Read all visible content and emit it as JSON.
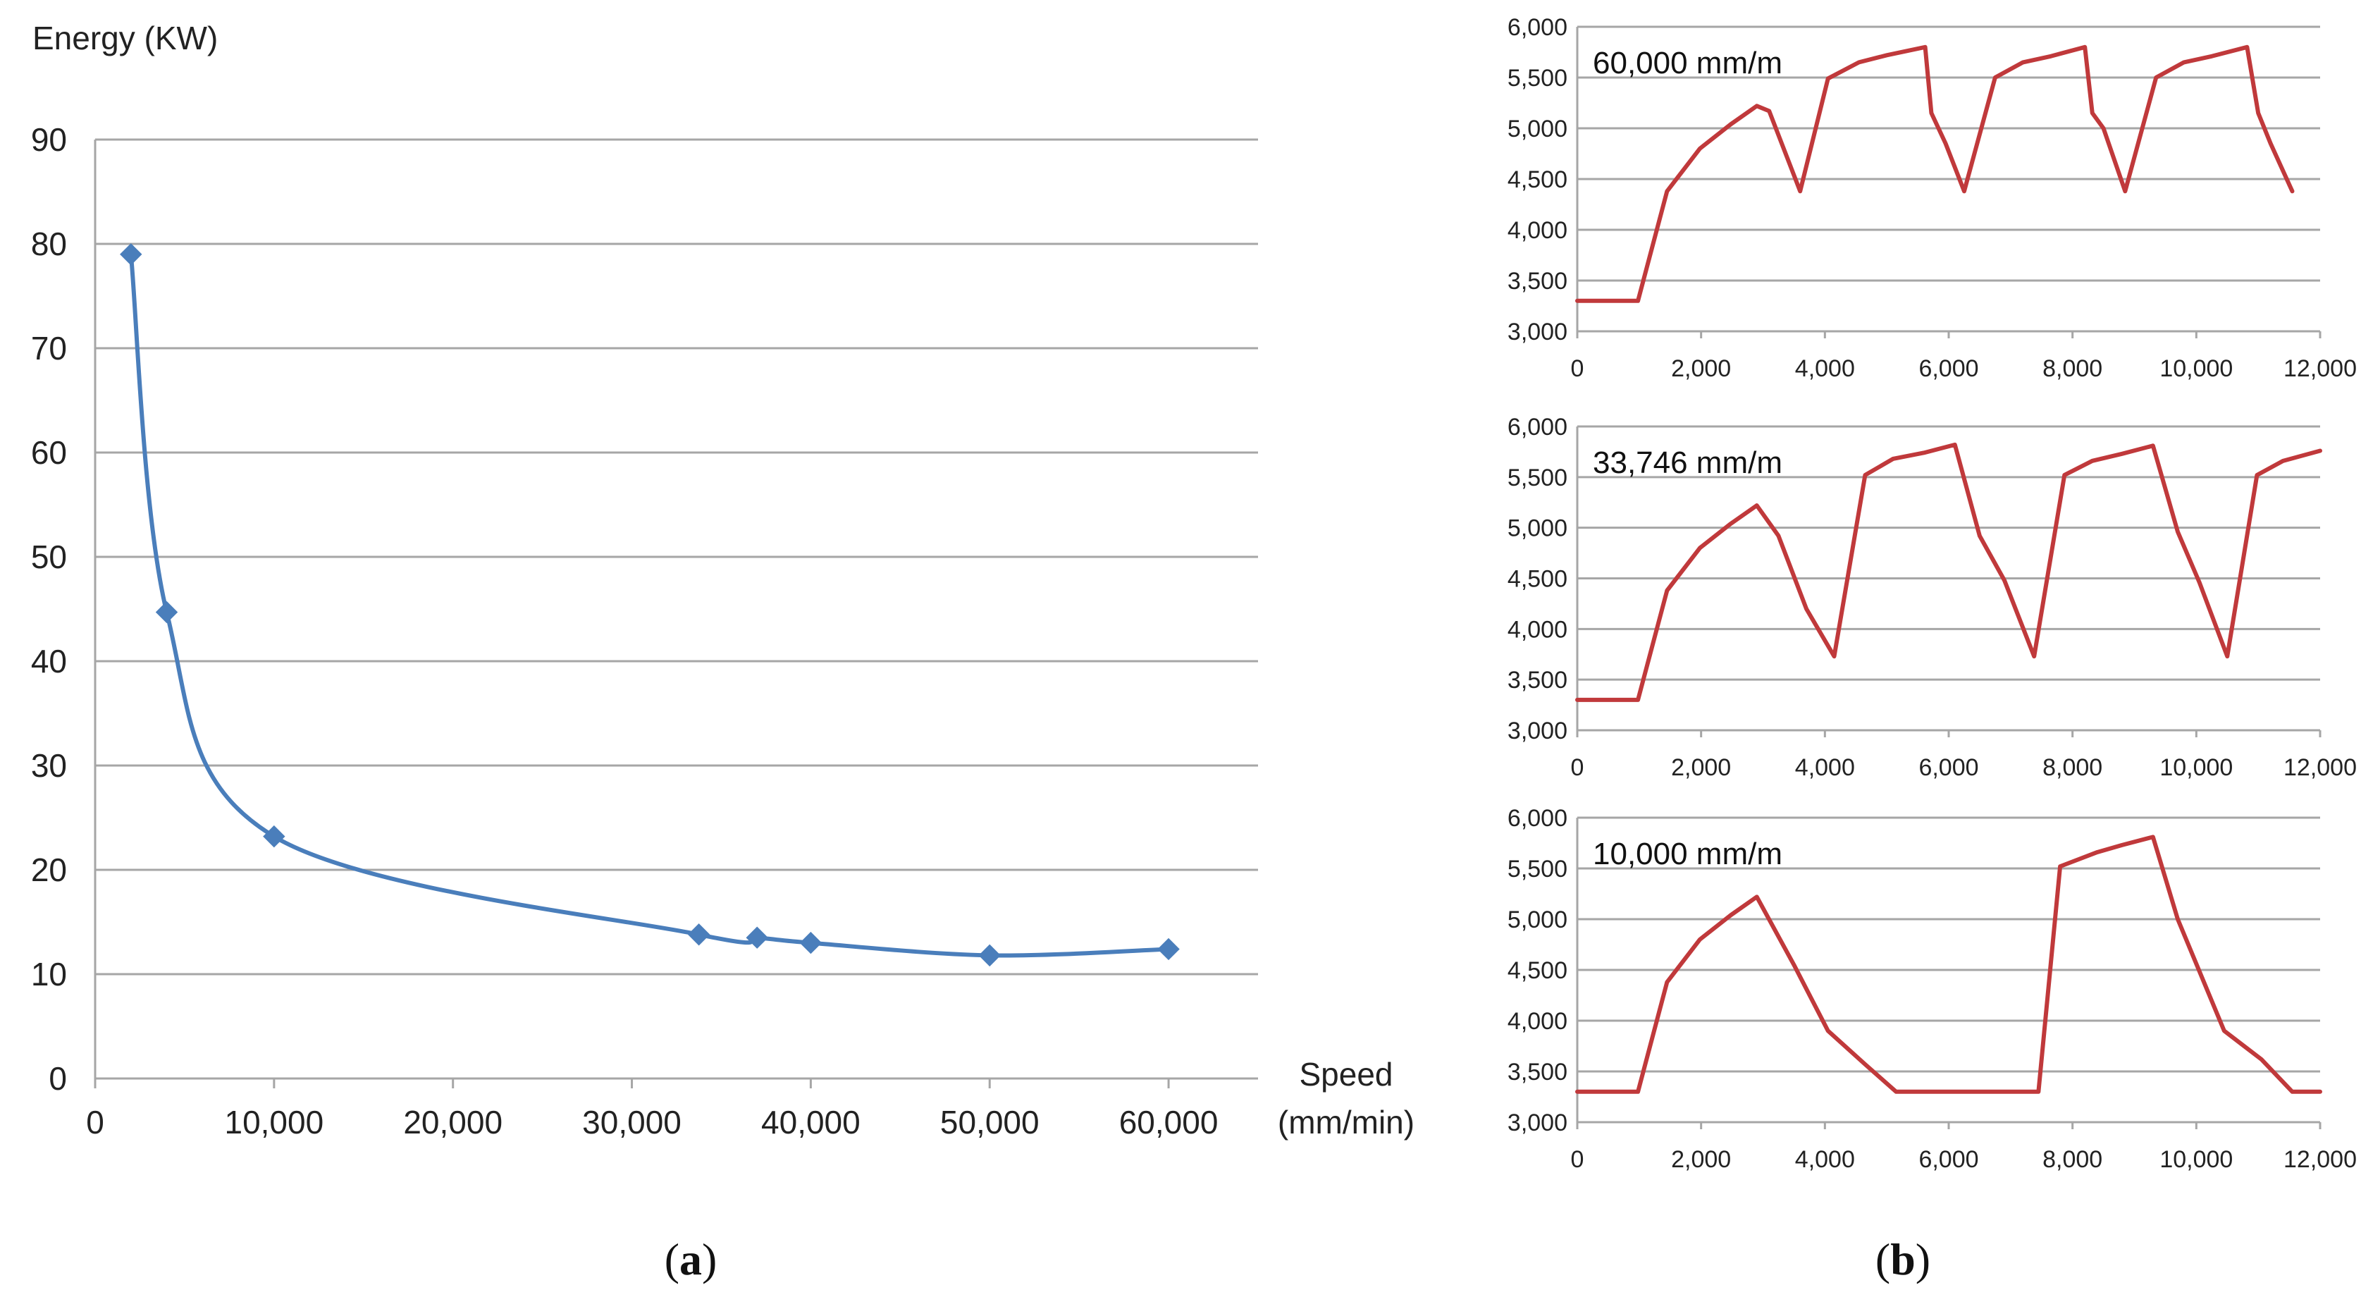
{
  "colors": {
    "panel_a_line": "#4a7ebb",
    "panel_b_line": "#c0393b"
  },
  "captions": {
    "a": {
      "open": "(",
      "letter": "a",
      "close": ")"
    },
    "b": {
      "open": "(",
      "letter": "b",
      "close": ")"
    }
  },
  "chart_data": [
    {
      "id": "a",
      "type": "line",
      "title": "",
      "ylabel": "Energy (KW)",
      "xlabel_line1": "Speed",
      "xlabel_line2": "(mm/min)",
      "xlim": [
        0,
        65000
      ],
      "ylim": [
        0,
        90
      ],
      "xticks": [
        0,
        10000,
        20000,
        30000,
        40000,
        50000,
        60000
      ],
      "xtick_labels": [
        "0",
        "10,000",
        "20,000",
        "30,000",
        "40,000",
        "50,000",
        "60,000"
      ],
      "yticks": [
        0,
        10,
        20,
        30,
        40,
        50,
        60,
        70,
        80,
        90
      ],
      "ytick_labels": [
        "0",
        "10",
        "20",
        "30",
        "40",
        "50",
        "60",
        "70",
        "80",
        "90"
      ],
      "grid": true,
      "marker": "diamond",
      "smooth": true,
      "series": [
        {
          "name": "Energy",
          "x": [
            2000,
            4000,
            10000,
            33746,
            37000,
            40000,
            50000,
            60000
          ],
          "y": [
            79,
            44.7,
            23.2,
            13.8,
            13.5,
            13.0,
            11.8,
            12.4
          ]
        }
      ]
    },
    {
      "id": "b1",
      "type": "line",
      "title": "60,000 mm/m",
      "xlim": [
        0,
        12000
      ],
      "ylim": [
        3000,
        6000
      ],
      "xticks": [
        0,
        2000,
        4000,
        6000,
        8000,
        10000,
        12000
      ],
      "xtick_labels": [
        "0",
        "2,000",
        "4,000",
        "6,000",
        "8,000",
        "10,000",
        "12,000"
      ],
      "yticks": [
        3000,
        3500,
        4000,
        4500,
        5000,
        5500,
        6000
      ],
      "ytick_labels": [
        "3,000",
        "3,500",
        "4,000",
        "4,500",
        "5,000",
        "5,500",
        "6,000"
      ],
      "grid": true,
      "series": [
        {
          "name": "60,000 mm/m",
          "x": [
            0,
            980,
            1450,
            1980,
            2480,
            2900,
            3100,
            3600,
            4050,
            4550,
            5000,
            5620,
            5720,
            5950,
            6250,
            6750,
            7200,
            7650,
            8200,
            8320,
            8500,
            8850,
            9350,
            9800,
            10250,
            10820,
            11000,
            11200,
            11550
          ],
          "y": [
            3300,
            3300,
            4380,
            4800,
            5040,
            5220,
            5170,
            4380,
            5490,
            5650,
            5720,
            5800,
            5150,
            4850,
            4380,
            5500,
            5650,
            5710,
            5800,
            5150,
            5000,
            4380,
            5500,
            5650,
            5710,
            5800,
            5150,
            4850,
            4380
          ]
        }
      ]
    },
    {
      "id": "b2",
      "type": "line",
      "title": "33,746 mm/m",
      "xlim": [
        0,
        12000
      ],
      "ylim": [
        3000,
        6000
      ],
      "xticks": [
        0,
        2000,
        4000,
        6000,
        8000,
        10000,
        12000
      ],
      "xtick_labels": [
        "0",
        "2,000",
        "4,000",
        "6,000",
        "8,000",
        "10,000",
        "12,000"
      ],
      "yticks": [
        3000,
        3500,
        4000,
        4500,
        5000,
        5500,
        6000
      ],
      "ytick_labels": [
        "3,000",
        "3,500",
        "4,000",
        "4,500",
        "5,000",
        "5,500",
        "6,000"
      ],
      "grid": true,
      "series": [
        {
          "name": "33,746 mm/m",
          "x": [
            0,
            980,
            1450,
            1980,
            2480,
            2900,
            3250,
            3700,
            4150,
            4650,
            5100,
            5600,
            6100,
            6500,
            6900,
            7380,
            7870,
            8320,
            8800,
            9300,
            9700,
            10050,
            10500,
            10980,
            11400,
            12000
          ],
          "y": [
            3300,
            3300,
            4380,
            4800,
            5040,
            5220,
            4920,
            4200,
            3730,
            5520,
            5680,
            5740,
            5820,
            4920,
            4480,
            3730,
            5520,
            5660,
            5730,
            5810,
            4960,
            4460,
            3730,
            5520,
            5660,
            5760
          ]
        }
      ]
    },
    {
      "id": "b3",
      "type": "line",
      "title": "10,000 mm/m",
      "xlim": [
        0,
        12000
      ],
      "ylim": [
        3000,
        6000
      ],
      "xticks": [
        0,
        2000,
        4000,
        6000,
        8000,
        10000,
        12000
      ],
      "xtick_labels": [
        "0",
        "2,000",
        "4,000",
        "6,000",
        "8,000",
        "10,000",
        "12,000"
      ],
      "yticks": [
        3000,
        3500,
        4000,
        4500,
        5000,
        5500,
        6000
      ],
      "ytick_labels": [
        "3,000",
        "3,500",
        "4,000",
        "4,500",
        "5,000",
        "5,500",
        "6,000"
      ],
      "grid": true,
      "series": [
        {
          "name": "10,000 mm/m",
          "x": [
            0,
            980,
            1450,
            1980,
            2480,
            2900,
            3500,
            4050,
            4650,
            5150,
            5800,
            6500,
            7450,
            7800,
            8400,
            8800,
            9300,
            9700,
            10450,
            11050,
            11550,
            12000
          ],
          "y": [
            3300,
            3300,
            4380,
            4800,
            5040,
            5220,
            4550,
            3900,
            3570,
            3300,
            3300,
            3300,
            3300,
            5520,
            5660,
            5730,
            5810,
            5000,
            3900,
            3620,
            3300,
            3300
          ]
        }
      ]
    }
  ]
}
